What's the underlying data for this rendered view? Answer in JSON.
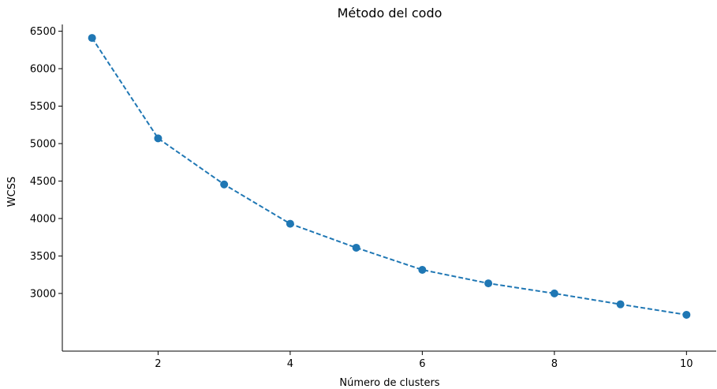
{
  "chart_data": {
    "type": "line",
    "title": "Método del codo",
    "xlabel": "Número de clusters",
    "ylabel": "WCSS",
    "x": [
      1,
      2,
      3,
      4,
      5,
      6,
      7,
      8,
      9,
      10
    ],
    "series": [
      {
        "values": [
          6410,
          5070,
          4455,
          3930,
          3610,
          3315,
          3135,
          3000,
          2855,
          2715
        ],
        "color": "#1f77b4",
        "line_style": "dashed",
        "marker": "circle"
      }
    ],
    "xlim": [
      0.55,
      10.45
    ],
    "ylim": [
      2230,
      6590
    ],
    "xticks": [
      2,
      4,
      6,
      8,
      10
    ],
    "yticks": [
      3000,
      3500,
      4000,
      4500,
      5000,
      5500,
      6000,
      6500
    ],
    "grid": false
  }
}
